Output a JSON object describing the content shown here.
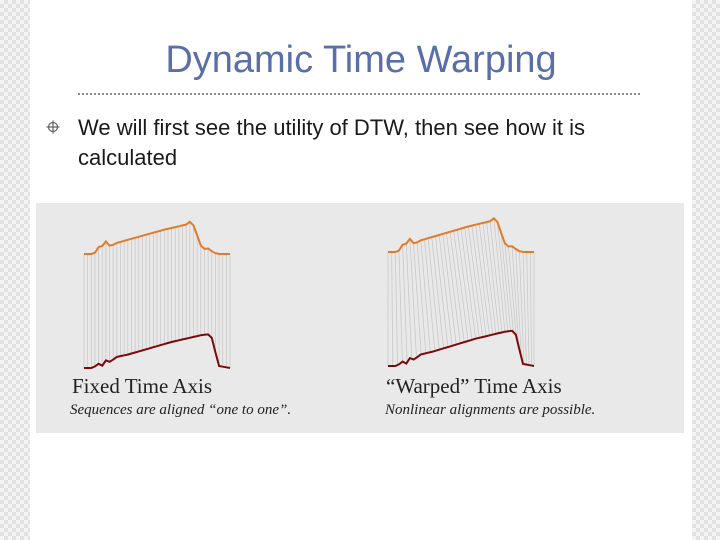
{
  "slide": {
    "title": "Dynamic Time Warping",
    "bullet": "We will first see the utility of DTW, then see how it is calculated",
    "bullet_icon": "crosshair-bullet-icon"
  },
  "figure": {
    "left": {
      "caption_title": "Fixed Time Axis",
      "caption_sub": "Sequences are aligned “one to one”."
    },
    "right": {
      "caption_title": "“Warped” Time Axis",
      "caption_sub": "Nonlinear alignments are possible."
    },
    "colors": {
      "panel": "#e9e9e9",
      "top_sequence": "#e07b2a",
      "bottom_sequence": "#7a0a0a",
      "alignment_lines": "#c8c8c8",
      "title": "#5a6fa8"
    }
  }
}
